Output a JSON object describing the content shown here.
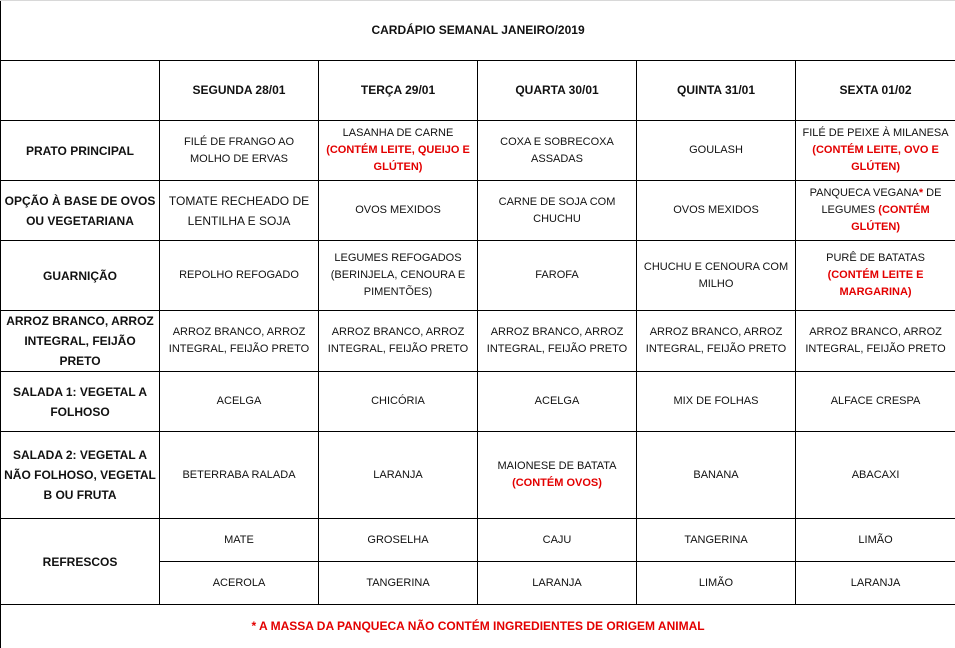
{
  "title": "CARDÁPIO SEMANAL JANEIRO/2019",
  "days": [
    "SEGUNDA   28/01",
    "TERÇA 29/01",
    "QUARTA 30/01",
    "QUINTA 31/01",
    "SEXTA 01/02"
  ],
  "rows": [
    {
      "label": "PRATO PRINCIPAL",
      "cells": [
        [
          {
            "text": "FILÉ DE FRANGO AO MOLHO DE ERVAS"
          }
        ],
        [
          {
            "text": "LASANHA DE CARNE "
          },
          {
            "text": "(CONTÉM LEITE, QUEIJO E GLÚTEN)",
            "red": true
          }
        ],
        [
          {
            "text": "COXA E SOBRECOXA ASSADAS"
          }
        ],
        [
          {
            "text": "GOULASH"
          }
        ],
        [
          {
            "text": "FILÉ DE PEIXE À MILANESA "
          },
          {
            "text": "(CONTÉM LEITE, OVO E GLÚTEN)",
            "red": true
          }
        ]
      ]
    },
    {
      "label": "OPÇÃO À BASE DE OVOS OU VEGETARIANA",
      "cells": [
        [
          {
            "text": "TOMATE RECHEADO DE LENTILHA E SOJA"
          }
        ],
        [
          {
            "text": "OVOS MEXIDOS"
          }
        ],
        [
          {
            "text": "CARNE DE SOJA COM CHUCHU"
          }
        ],
        [
          {
            "text": "OVOS MEXIDOS"
          }
        ],
        [
          {
            "text": "PANQUECA VEGANA"
          },
          {
            "text": "*",
            "red": true
          },
          {
            "text": " DE LEGUMES "
          },
          {
            "text": "(CONTÉM GLÚTEN)",
            "red": true
          }
        ]
      ]
    },
    {
      "label": "GUARNIÇÃO",
      "cells": [
        [
          {
            "text": "REPOLHO REFOGADO"
          }
        ],
        [
          {
            "text": "LEGUMES REFOGADOS (BERINJELA, CENOURA E PIMENTÕES)"
          }
        ],
        [
          {
            "text": "FAROFA"
          }
        ],
        [
          {
            "text": "CHUCHU E CENOURA COM MILHO"
          }
        ],
        [
          {
            "text": "PURÊ DE BATATAS "
          },
          {
            "text": "(CONTÉM LEITE E MARGARINA)",
            "red": true
          }
        ]
      ]
    },
    {
      "label": "ARROZ BRANCO, ARROZ INTEGRAL, FEIJÃO PRETO",
      "cells": [
        [
          {
            "text": "ARROZ BRANCO, ARROZ INTEGRAL, FEIJÃO PRETO"
          }
        ],
        [
          {
            "text": "ARROZ BRANCO, ARROZ INTEGRAL, FEIJÃO PRETO"
          }
        ],
        [
          {
            "text": "ARROZ BRANCO, ARROZ INTEGRAL, FEIJÃO PRETO"
          }
        ],
        [
          {
            "text": "ARROZ BRANCO, ARROZ INTEGRAL, FEIJÃO PRETO"
          }
        ],
        [
          {
            "text": "ARROZ BRANCO, ARROZ INTEGRAL, FEIJÃO PRETO"
          }
        ]
      ]
    },
    {
      "label": "SALADA 1: VEGETAL A FOLHOSO",
      "cells": [
        [
          {
            "text": "ACELGA"
          }
        ],
        [
          {
            "text": "CHICÓRIA"
          }
        ],
        [
          {
            "text": "ACELGA"
          }
        ],
        [
          {
            "text": "MIX DE FOLHAS"
          }
        ],
        [
          {
            "text": "ALFACE CRESPA"
          }
        ]
      ]
    },
    {
      "label": "SALADA 2: VEGETAL A NÃO FOLHOSO, VEGETAL B OU FRUTA",
      "cells": [
        [
          {
            "text": "BETERRABA RALADA"
          }
        ],
        [
          {
            "text": "LARANJA"
          }
        ],
        [
          {
            "text": "MAIONESE DE BATATA "
          },
          {
            "text": "(CONTÉM OVOS)",
            "red": true
          }
        ],
        [
          {
            "text": "BANANA"
          }
        ],
        [
          {
            "text": "ABACAXI"
          }
        ]
      ]
    }
  ],
  "refrescos": {
    "label": "REFRESCOS",
    "rows": [
      [
        "MATE",
        "GROSELHA",
        "CAJU",
        "TANGERINA",
        "LIMÃO"
      ],
      [
        "ACEROLA",
        "TANGERINA",
        "LARANJA",
        "LIMÃO",
        "LARANJA"
      ]
    ]
  },
  "footnote": "* A MASSA DA PANQUECA NÃO CONTÉM INGREDIENTES DE ORIGEM ANIMAL",
  "colors": {
    "allergen_red": "#e30000",
    "border": "#000000"
  }
}
